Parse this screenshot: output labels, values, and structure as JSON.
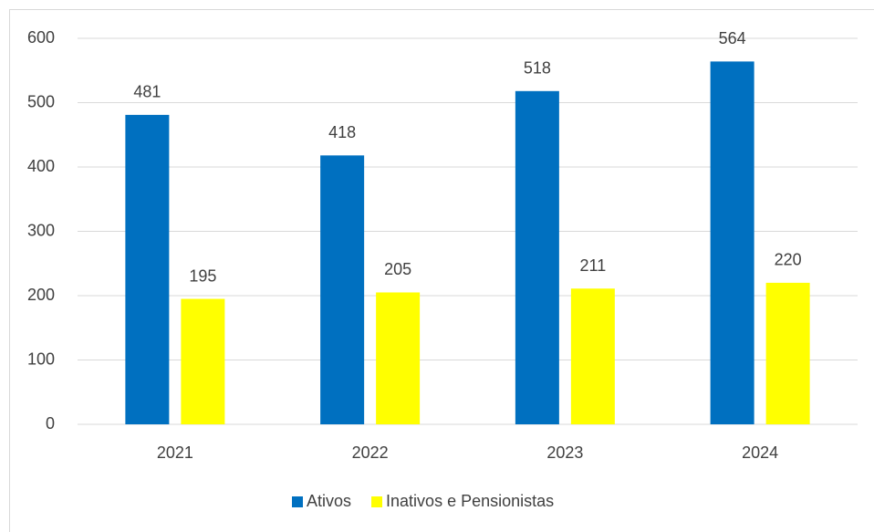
{
  "chart_data": {
    "type": "bar",
    "categories": [
      "2021",
      "2022",
      "2023",
      "2024"
    ],
    "series": [
      {
        "name": "Ativos",
        "color": "#0070c0",
        "values": [
          481,
          418,
          518,
          564
        ]
      },
      {
        "name": "Inativos e Pensionistas",
        "color": "#ffff00",
        "values": [
          195,
          205,
          211,
          220
        ]
      }
    ],
    "ylim": [
      0,
      600
    ],
    "yticks": [
      0,
      100,
      200,
      300,
      400,
      500,
      600
    ],
    "grid": true,
    "legend": "bottom"
  }
}
